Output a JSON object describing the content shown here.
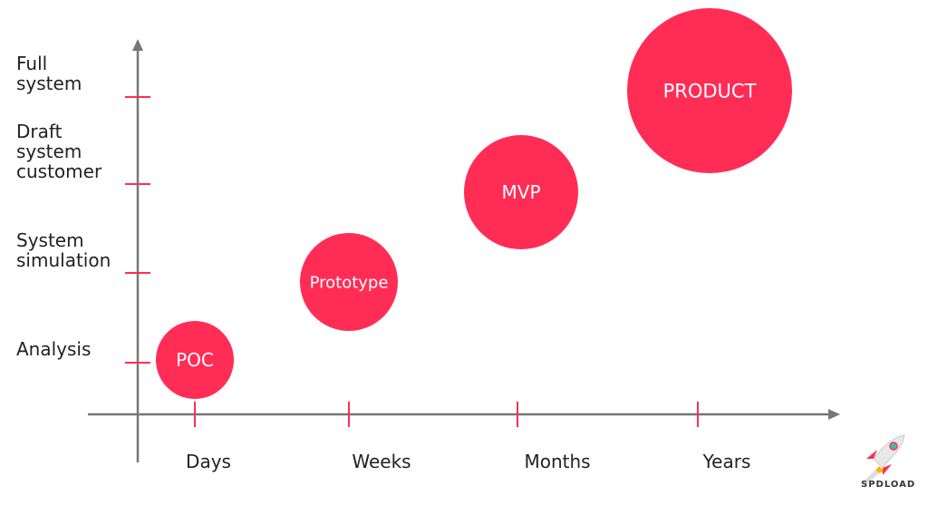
{
  "chart_data": {
    "type": "scatter",
    "x_categories": [
      "Days",
      "Weeks",
      "Months",
      "Years"
    ],
    "y_categories": [
      "Analysis",
      "System\nsimulation",
      "Draft\nsystem\ncustomer",
      "Full\nsystem"
    ],
    "points": [
      {
        "label": "POC",
        "x": "Days",
        "y": "Analysis"
      },
      {
        "label": "Prototype",
        "x": "Weeks",
        "y": "System\nsimulation"
      },
      {
        "label": "MVP",
        "x": "Months",
        "y": "Draft\nsystem\ncustomer"
      },
      {
        "label": "PRODUCT",
        "x": "Years",
        "y": "Full\nsystem"
      }
    ],
    "colors": {
      "bubble": "#ff2d55",
      "axis": "#777777",
      "tick": "#ff2d55"
    }
  },
  "logo": {
    "text": "SPDLOAD"
  }
}
